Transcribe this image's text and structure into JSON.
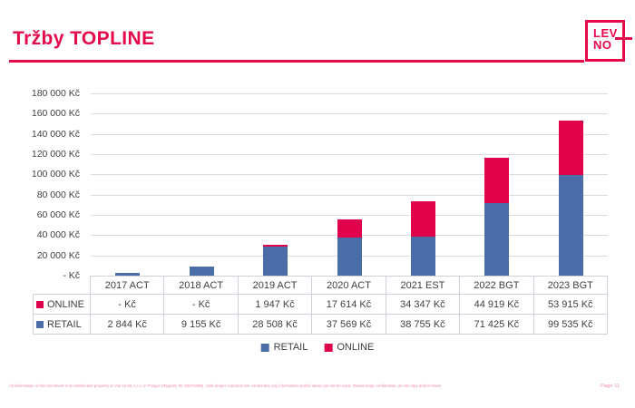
{
  "slide": {
    "title": "Tržby TOPLINE",
    "logo": {
      "line1": "LEV",
      "line2": "NO"
    },
    "page_label": "Page 11",
    "footer": "All information in this document is an intellectual property of Vse za 50, s.r.o. in Prague (Registry ID: 04670408). Until proper contracts are conducted, any information and/or ideas can not be used. Please keep confidential, do not copy and/or share."
  },
  "colors": {
    "brand": "#e5094c",
    "online": "#e0034b",
    "retail": "#4a6da7",
    "gridline": "#dcdcdc",
    "table_border": "#ccd2da",
    "footer_pink": "#f28ba3"
  },
  "chart_data": {
    "type": "bar",
    "stacked": true,
    "categories": [
      "2017 ACT",
      "2018 ACT",
      "2019 ACT",
      "2020 ACT",
      "2021 EST",
      "2022 BGT",
      "2023 BGT"
    ],
    "series": [
      {
        "name": "RETAIL",
        "color": "#4a6da7",
        "values": [
          2844,
          9155,
          28508,
          37569,
          38755,
          71425,
          99535
        ]
      },
      {
        "name": "ONLINE",
        "color": "#e0034b",
        "values": [
          0,
          0,
          1947,
          17614,
          34347,
          44919,
          53915
        ]
      }
    ],
    "y_ticks": [
      "180 000 Kč",
      "160 000 Kč",
      "140 000 Kč",
      "120 000 Kč",
      "100 000 Kč",
      "80 000 Kč",
      "60 000 Kč",
      "40 000 Kč",
      "20 000 Kč",
      "-   Kč"
    ],
    "ylim": [
      0,
      180000
    ],
    "grid": true,
    "legend_position": "bottom"
  },
  "table": {
    "header": [
      "2017 ACT",
      "2018 ACT",
      "2019 ACT",
      "2020 ACT",
      "2021 EST",
      "2022 BGT",
      "2023 BGT"
    ],
    "rows": [
      {
        "label": "ONLINE",
        "values": [
          "-   Kč",
          "-   Kč",
          "1 947 Kč",
          "17 614 Kč",
          "34 347 Kč",
          "44 919 Kč",
          "53 915 Kč"
        ]
      },
      {
        "label": "RETAIL",
        "values": [
          "2 844 Kč",
          "9 155 Kč",
          "28 508 Kč",
          "37 569 Kč",
          "38 755 Kč",
          "71 425 Kč",
          "99 535 Kč"
        ]
      }
    ]
  }
}
